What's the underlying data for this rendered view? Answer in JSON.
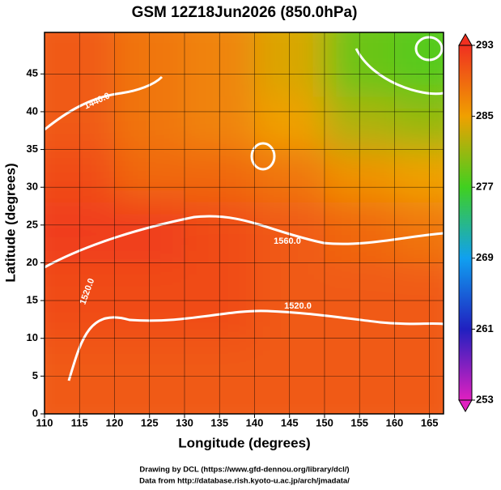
{
  "chart_data": {
    "type": "map",
    "title": "GSM 12Z18Jun2026 (850.0hPa)",
    "x_label": "Longitude (degrees)",
    "y_label": "Latitude  (degrees)",
    "credits": [
      "Drawing by DCL (https://www.gfd-dennou.org/library/dcl/)",
      "Data from http://database.rish.kyoto-u.ac.jp/arch/jmadata/"
    ],
    "xlim": [
      110,
      167
    ],
    "ylim": [
      0,
      50.5
    ],
    "xticks": [
      110,
      115,
      120,
      125,
      130,
      135,
      140,
      145,
      150,
      155,
      160,
      165
    ],
    "yticks": [
      0,
      5,
      10,
      15,
      20,
      25,
      30,
      35,
      40,
      45
    ],
    "grid": true,
    "field": {
      "lon_edges": [
        110,
        120,
        130,
        140,
        150,
        160,
        167
      ],
      "lat_edges": [
        50.5,
        42,
        35,
        28,
        20,
        10,
        0
      ],
      "values": [
        [
          290,
          288,
          287,
          284,
          279,
          278
        ],
        [
          290,
          288,
          287,
          285,
          282,
          281
        ],
        [
          291,
          289,
          289,
          288,
          286,
          285
        ],
        [
          292,
          292,
          291,
          290,
          289,
          288
        ],
        [
          291,
          291,
          291,
          290,
          290,
          290
        ],
        [
          290,
          290,
          290,
          290,
          290,
          290
        ]
      ]
    },
    "contour_labels": [
      "1440.0",
      "1560.0",
      "1520.0",
      "1520.0"
    ],
    "colorbar": {
      "lim": [
        253,
        293
      ],
      "ticks": [
        253,
        261,
        269,
        277,
        285,
        293
      ],
      "colors": [
        "#e020c0",
        "#2020c0",
        "#10a0f0",
        "#40d020",
        "#f0a000",
        "#f03020"
      ]
    }
  }
}
